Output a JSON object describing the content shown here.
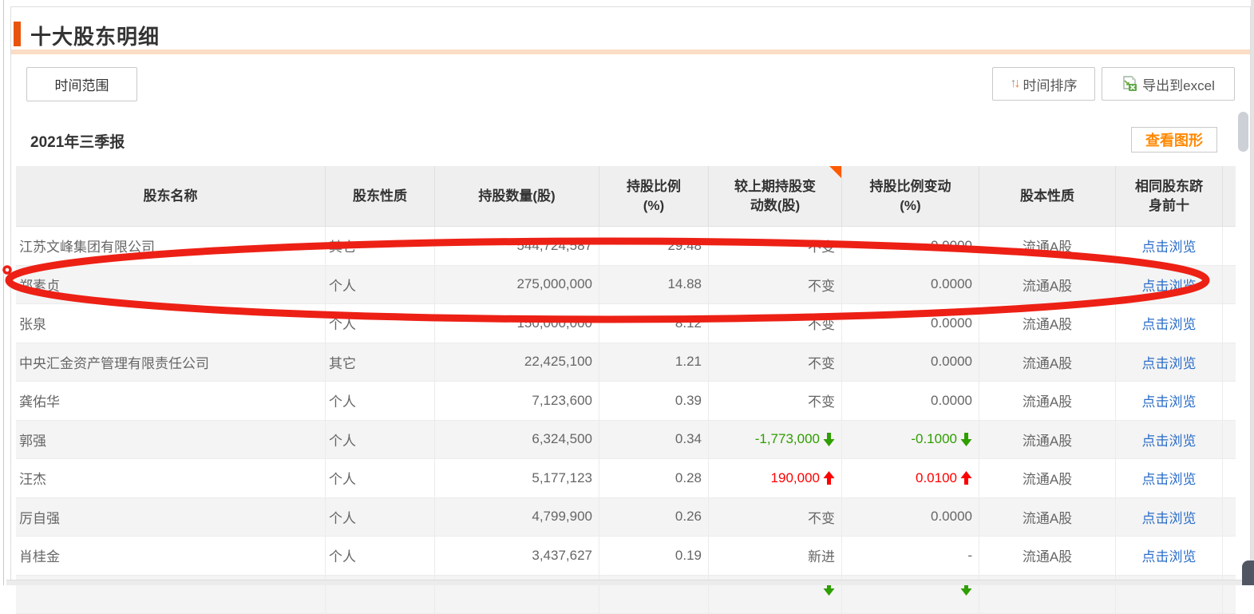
{
  "page": {
    "title": "十大股东明细",
    "time_range_button": "时间范围",
    "time_sort_button": "时间排序",
    "export_button": "导出到excel",
    "period_label": "2021年三季报",
    "view_chart_button": "查看图形"
  },
  "icons": {
    "sort_up_icon": "↑",
    "sort_down_icon": "↓",
    "excel_icon": "excel-export-icon",
    "corner_marker": "orange-corner-triangle"
  },
  "colors": {
    "accent_orange": "#e8540e",
    "underline_peach": "#fbdcc5",
    "view_chart_orange": "#ff8800",
    "link_blue": "#2b6dc8",
    "increase_red": "#fe0000",
    "decrease_green": "#2f9e00",
    "annotation_red": "#ed2015"
  },
  "table": {
    "headers": [
      "股东名称",
      "股东性质",
      "持股数量(股)",
      "持股比例\n(%)",
      "较上期持股变\n动数(股)",
      "持股比例变动\n(%)",
      "股本性质",
      "相同股东跻\n身前十"
    ],
    "rows": [
      {
        "name": "江苏文峰集团有限公司",
        "nature": "其它",
        "shares": "544,724,587",
        "ratio": "29.48",
        "change_shares": "不变",
        "change_shares_dir": null,
        "change_ratio": "0.0000",
        "change_ratio_dir": null,
        "equity": "流通A股",
        "link": "点击浏览"
      },
      {
        "name": "郑素贞",
        "nature": "个人",
        "shares": "275,000,000",
        "ratio": "14.88",
        "change_shares": "不变",
        "change_shares_dir": null,
        "change_ratio": "0.0000",
        "change_ratio_dir": null,
        "equity": "流通A股",
        "link": "点击浏览"
      },
      {
        "name": "张泉",
        "nature": "个人",
        "shares": "150,000,000",
        "ratio": "8.12",
        "change_shares": "不变",
        "change_shares_dir": null,
        "change_ratio": "0.0000",
        "change_ratio_dir": null,
        "equity": "流通A股",
        "link": "点击浏览"
      },
      {
        "name": "中央汇金资产管理有限责任公司",
        "nature": "其它",
        "shares": "22,425,100",
        "ratio": "1.21",
        "change_shares": "不变",
        "change_shares_dir": null,
        "change_ratio": "0.0000",
        "change_ratio_dir": null,
        "equity": "流通A股",
        "link": "点击浏览"
      },
      {
        "name": "龚佑华",
        "nature": "个人",
        "shares": "7,123,600",
        "ratio": "0.39",
        "change_shares": "不变",
        "change_shares_dir": null,
        "change_ratio": "0.0000",
        "change_ratio_dir": null,
        "equity": "流通A股",
        "link": "点击浏览"
      },
      {
        "name": "郭强",
        "nature": "个人",
        "shares": "6,324,500",
        "ratio": "0.34",
        "change_shares": "-1,773,000",
        "change_shares_dir": "down",
        "change_ratio": "-0.1000",
        "change_ratio_dir": "down",
        "equity": "流通A股",
        "link": "点击浏览"
      },
      {
        "name": "汪杰",
        "nature": "个人",
        "shares": "5,177,123",
        "ratio": "0.28",
        "change_shares": "190,000",
        "change_shares_dir": "up",
        "change_ratio": "0.0100",
        "change_ratio_dir": "up",
        "equity": "流通A股",
        "link": "点击浏览"
      },
      {
        "name": "厉自强",
        "nature": "个人",
        "shares": "4,799,900",
        "ratio": "0.26",
        "change_shares": "不变",
        "change_shares_dir": null,
        "change_ratio": "0.0000",
        "change_ratio_dir": null,
        "equity": "流通A股",
        "link": "点击浏览"
      },
      {
        "name": "肖桂金",
        "nature": "个人",
        "shares": "3,437,627",
        "ratio": "0.19",
        "change_shares": "新进",
        "change_shares_dir": null,
        "change_ratio": "-",
        "change_ratio_dir": null,
        "equity": "流通A股",
        "link": "点击浏览"
      },
      {
        "name": "",
        "nature": "",
        "shares": "",
        "ratio": "",
        "change_shares": "",
        "change_shares_dir": "down",
        "change_ratio": "",
        "change_ratio_dir": "down",
        "equity": "",
        "link": "",
        "partial": true
      }
    ]
  },
  "annotation": {
    "type": "hand-drawn-ellipse-highlight",
    "highlighted_row": "郑素贞",
    "color": "#ed2015"
  }
}
